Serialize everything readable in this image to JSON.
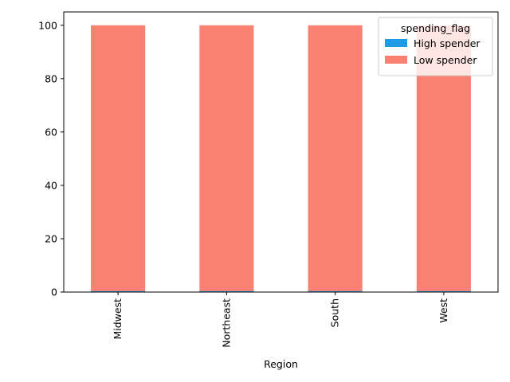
{
  "chart_data": {
    "type": "bar",
    "stacked": true,
    "orientation": "vertical",
    "categories": [
      "Midwest",
      "Northeast",
      "South",
      "West"
    ],
    "series": [
      {
        "name": "High spender",
        "values": [
          0.4,
          0.4,
          0.4,
          0.4
        ],
        "color": "#1f9be6"
      },
      {
        "name": "Low spender",
        "values": [
          99.6,
          99.6,
          99.6,
          99.6
        ],
        "color": "#fa8072"
      }
    ],
    "xlabel": "Region",
    "ylabel": "",
    "ylim": [
      0,
      105
    ],
    "yticks": [
      0,
      20,
      40,
      60,
      80,
      100
    ],
    "legend": {
      "title": "spending_flag",
      "placement": "top-right"
    },
    "grid": false
  }
}
